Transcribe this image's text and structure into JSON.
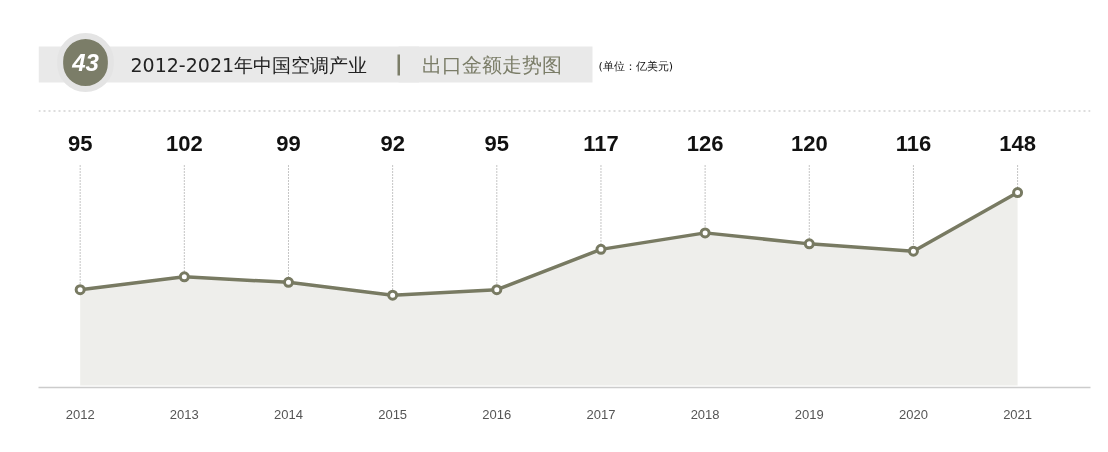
{
  "chart_data": {
    "type": "area",
    "title": "2012-2021年中国空调产业",
    "subtitle": "出口金额走势图",
    "annotations": [
      "43",
      "(单位：亿美元)"
    ],
    "categories": [
      "2012",
      "2013",
      "2014",
      "2015",
      "2016",
      "2017",
      "2018",
      "2019",
      "2020",
      "2021"
    ],
    "series": [
      {
        "color": "#787a62",
        "values": [
          95,
          102,
          99,
          92,
          95,
          117,
          126,
          120,
          116,
          148
        ]
      }
    ],
    "data_labels": true,
    "marker": "circle",
    "grid": false
  }
}
